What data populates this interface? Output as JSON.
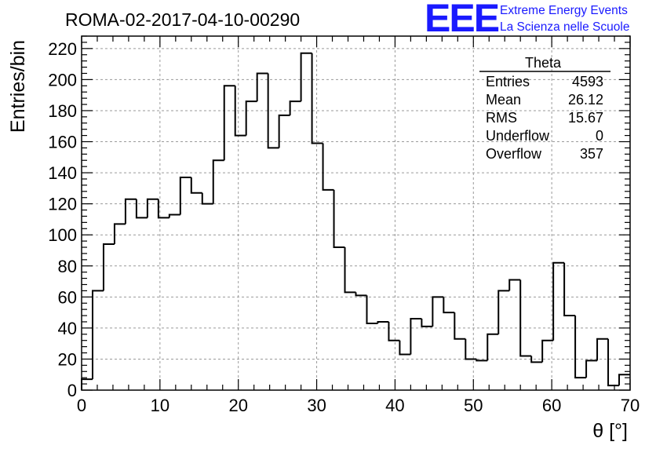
{
  "header": {
    "title": "ROMA-02-2017-04-10-00290",
    "logo_mark": "EEE",
    "logo_line1": "Extreme Energy Events",
    "logo_line2": "La Scienza nelle Scuole",
    "logo_color": "#1a1aff"
  },
  "stats": {
    "name": "Theta",
    "rows": [
      {
        "label": "Entries",
        "value": "4593"
      },
      {
        "label": "Mean",
        "value": "26.12"
      },
      {
        "label": "RMS",
        "value": "15.67"
      },
      {
        "label": "Underflow",
        "value": "0"
      },
      {
        "label": "Overflow",
        "value": "357"
      }
    ]
  },
  "chart_data": {
    "type": "histogram",
    "xlabel": "θ [°]",
    "ylabel": "Entries/bin",
    "xlim": [
      0,
      70
    ],
    "ylim": [
      0,
      228
    ],
    "x_ticks": [
      0,
      10,
      20,
      30,
      40,
      50,
      60,
      70
    ],
    "y_ticks": [
      0,
      20,
      40,
      60,
      80,
      100,
      120,
      140,
      160,
      180,
      200,
      220
    ],
    "grid": true,
    "line_color": "#000000",
    "bin_width": 1.4,
    "bin_edges_start": 0,
    "values": [
      7,
      64,
      94,
      107,
      123,
      111,
      123,
      111,
      113,
      137,
      127,
      120,
      148,
      196,
      164,
      186,
      204,
      156,
      177,
      186,
      217,
      159,
      129,
      92,
      63,
      61,
      43,
      44,
      32,
      23,
      46,
      41,
      60,
      50,
      33,
      20,
      19,
      36,
      64,
      71,
      22,
      18,
      32,
      82,
      48,
      8,
      19,
      33,
      3,
      10
    ]
  }
}
